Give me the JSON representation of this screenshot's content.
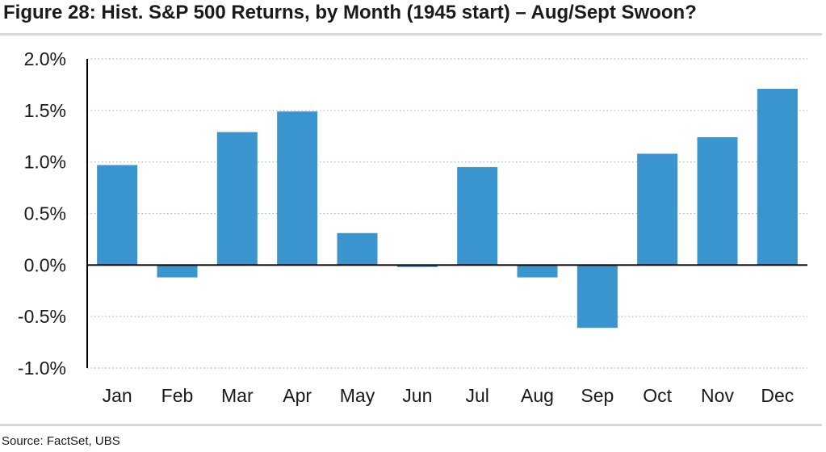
{
  "title": "Figure 28: Hist. S&P 500 Returns, by Month (1945 start) – Aug/Sept Swoon?",
  "source": "Source: FactSet, UBS",
  "colors": {
    "bar": "#3a95cf",
    "axis": "#000000",
    "grid": "#9dbad6"
  },
  "chart_data": {
    "type": "bar",
    "title": "Figure 28: Hist. S&P 500 Returns, by Month (1945 start) – Aug/Sept Swoon?",
    "xlabel": "",
    "ylabel": "",
    "categories": [
      "Jan",
      "Feb",
      "Mar",
      "Apr",
      "May",
      "Jun",
      "Jul",
      "Aug",
      "Sep",
      "Oct",
      "Nov",
      "Dec"
    ],
    "values": [
      0.97,
      -0.12,
      1.29,
      1.49,
      0.31,
      -0.02,
      0.95,
      -0.12,
      -0.61,
      1.08,
      1.24,
      1.71
    ],
    "value_unit": "%",
    "ylim": [
      -1.0,
      2.0
    ],
    "yticks": [
      2.0,
      1.5,
      1.0,
      0.5,
      0.0,
      -0.5,
      -1.0
    ],
    "ytick_labels": [
      "2.0%",
      "1.5%",
      "1.0%",
      "0.5%",
      "0.0%",
      "-0.5%",
      "-1.0%"
    ],
    "grid": true,
    "legend": false
  }
}
